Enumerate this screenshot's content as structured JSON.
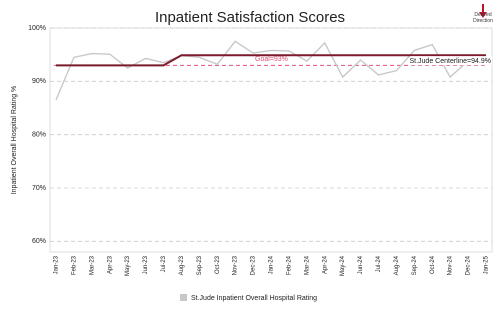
{
  "chart_data": {
    "type": "line",
    "title": "Inpatient Satisfaction Scores",
    "desired_direction": "Desired Direction",
    "y_label": "Inpatient Overall Hospital Rating %",
    "categories": [
      "Jan-23",
      "Feb-23",
      "Mar-23",
      "Apr-23",
      "May-23",
      "Jun-23",
      "Jul-23",
      "Aug-23",
      "Sep-23",
      "Oct-23",
      "Nov-23",
      "Dec-23",
      "Jan-24",
      "Feb-24",
      "Mar-24",
      "Apr-24",
      "May-24",
      "Jun-24",
      "Jul-24",
      "Aug-24",
      "Sep-24",
      "Oct-24",
      "Nov-24",
      "Dec-24",
      "Jan-25"
    ],
    "series": [
      {
        "name": "St.Jude Inpatient Overall Hospital Rating",
        "color": "#c8c8c8",
        "values": [
          86.5,
          94.5,
          95.2,
          95.1,
          92.5,
          94.3,
          93.5,
          94.8,
          94.5,
          93.2,
          97.5,
          95.3,
          95.8,
          95.7,
          93.8,
          97.2,
          90.8,
          94.0,
          91.2,
          92.0,
          95.8,
          96.9,
          90.8,
          93.8,
          94.8
        ]
      },
      {
        "color": "#7b1a2c",
        "values": [
          93.0,
          93.0,
          93.0,
          93.0,
          93.0,
          93.0,
          93.0,
          94.9,
          94.9,
          94.9,
          94.9,
          94.9,
          94.9,
          94.9,
          94.9,
          94.9,
          94.9,
          94.9,
          94.9,
          94.9,
          94.9,
          94.9,
          94.9,
          94.9,
          94.9
        ]
      }
    ],
    "centerline_label": "St.Jude Centerline=94.9%",
    "goal": {
      "value": 93,
      "label": "Goal=93%",
      "color": "#e0507a"
    },
    "ylim": [
      58,
      100
    ],
    "yticks": [
      {
        "value": 60,
        "label": "60%"
      },
      {
        "value": 70,
        "label": "70%"
      },
      {
        "value": 80,
        "label": "80%"
      },
      {
        "value": 90,
        "label": "90%"
      },
      {
        "value": 100,
        "label": "100%"
      }
    ],
    "grid": true
  }
}
